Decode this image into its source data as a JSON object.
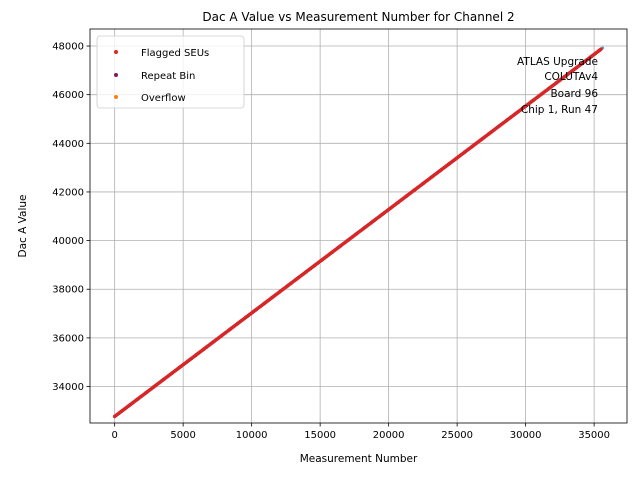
{
  "chart_data": {
    "type": "scatter",
    "title": "Dac A Value vs Measurement Number for Channel 2",
    "xlabel": "Measurement Number",
    "ylabel": "Dac A Value",
    "xlim": [
      -1800,
      37400
    ],
    "ylim": [
      32500,
      48700
    ],
    "xticks": [
      0,
      5000,
      10000,
      15000,
      20000,
      25000,
      30000,
      35000
    ],
    "yticks": [
      34000,
      36000,
      38000,
      40000,
      42000,
      44000,
      46000,
      48000
    ],
    "grid": true,
    "legend_position": "upper-left",
    "series": [
      {
        "name": "Flagged SEUs",
        "color": "#d62728",
        "x_range": [
          0,
          35500
        ],
        "y_range": [
          32770,
          47870
        ]
      },
      {
        "name": "Repeat Bin",
        "color": "#7b1b5a",
        "x_range": [
          0,
          35500
        ],
        "y_range": [
          32770,
          47870
        ]
      },
      {
        "name": "Overflow",
        "color": "#ff7f0e",
        "x_range": [
          0,
          35500
        ],
        "y_range": [
          32770,
          47870
        ]
      }
    ],
    "base_series_color": "#1f77b4",
    "annotations": [
      "ATLAS Upgrade",
      "COLUTAv4",
      "Board 96",
      "Chip 1, Run 47"
    ]
  }
}
